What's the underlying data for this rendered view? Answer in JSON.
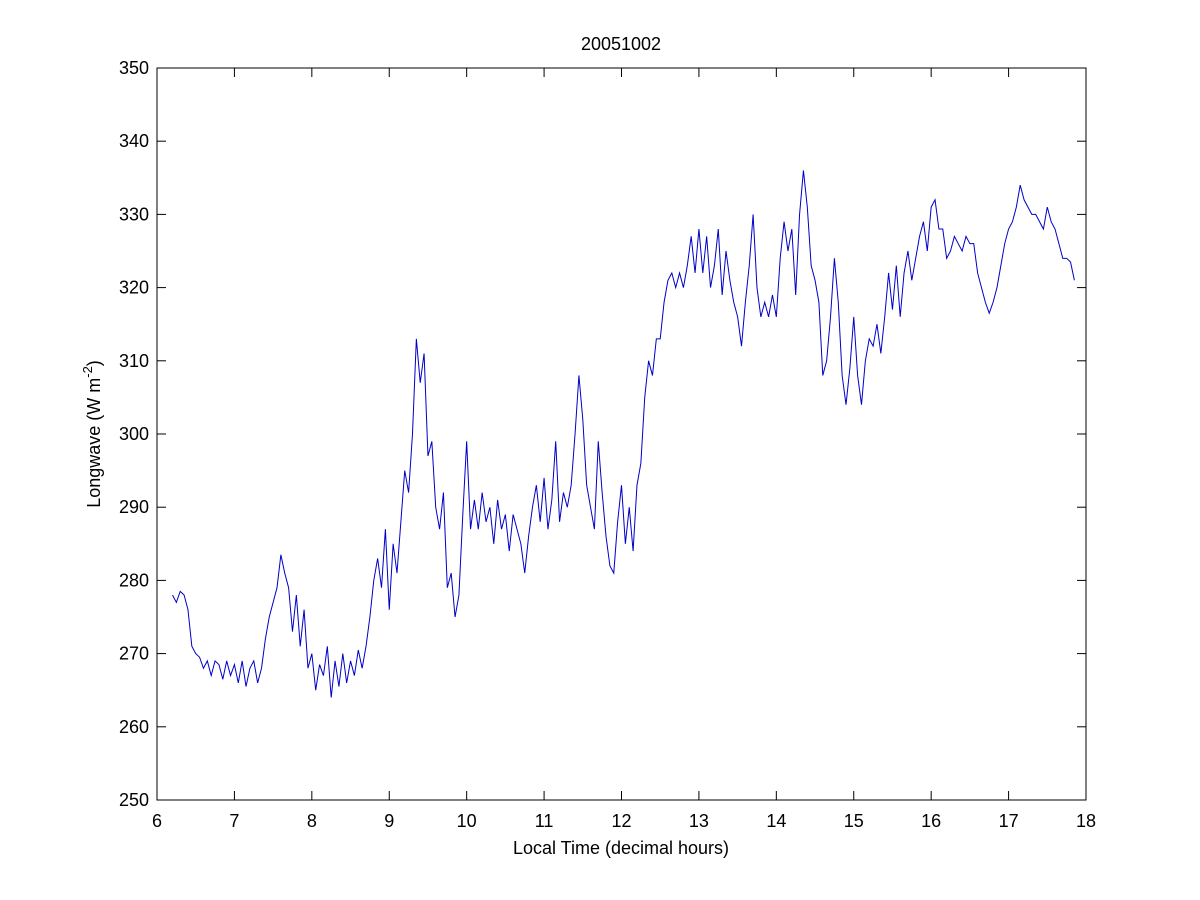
{
  "chart_data": {
    "type": "line",
    "title": "20051002",
    "xlabel": "Local Time (decimal hours)",
    "ylabel_main": "Longwave (W m",
    "ylabel_sup": "-2",
    "ylabel_end": ")",
    "xlim": [
      6,
      18
    ],
    "xticks": [
      6,
      7,
      8,
      9,
      10,
      11,
      12,
      13,
      14,
      15,
      16,
      17,
      18
    ],
    "ylim": [
      250,
      350
    ],
    "yticks": [
      250,
      260,
      270,
      280,
      290,
      300,
      310,
      320,
      330,
      340,
      350
    ],
    "grid": false,
    "x": [
      6.2,
      6.25,
      6.3,
      6.35,
      6.4,
      6.45,
      6.5,
      6.55,
      6.6,
      6.65,
      6.7,
      6.75,
      6.8,
      6.85,
      6.9,
      6.95,
      7.0,
      7.05,
      7.1,
      7.15,
      7.2,
      7.25,
      7.3,
      7.35,
      7.4,
      7.45,
      7.5,
      7.55,
      7.6,
      7.65,
      7.7,
      7.75,
      7.8,
      7.85,
      7.9,
      7.95,
      8.0,
      8.05,
      8.1,
      8.15,
      8.2,
      8.25,
      8.3,
      8.35,
      8.4,
      8.45,
      8.5,
      8.55,
      8.6,
      8.65,
      8.7,
      8.75,
      8.8,
      8.85,
      8.9,
      8.95,
      9.0,
      9.05,
      9.1,
      9.15,
      9.2,
      9.25,
      9.3,
      9.35,
      9.4,
      9.45,
      9.5,
      9.55,
      9.6,
      9.65,
      9.7,
      9.75,
      9.8,
      9.85,
      9.9,
      9.95,
      10.0,
      10.05,
      10.1,
      10.15,
      10.2,
      10.25,
      10.3,
      10.35,
      10.4,
      10.45,
      10.5,
      10.55,
      10.6,
      10.65,
      10.7,
      10.75,
      10.8,
      10.85,
      10.9,
      10.95,
      11.0,
      11.05,
      11.1,
      11.15,
      11.2,
      11.25,
      11.3,
      11.35,
      11.4,
      11.45,
      11.5,
      11.55,
      11.6,
      11.65,
      11.7,
      11.75,
      11.8,
      11.85,
      11.9,
      11.95,
      12.0,
      12.05,
      12.1,
      12.15,
      12.2,
      12.25,
      12.3,
      12.35,
      12.4,
      12.45,
      12.5,
      12.55,
      12.6,
      12.65,
      12.7,
      12.75,
      12.8,
      12.85,
      12.9,
      12.95,
      13.0,
      13.05,
      13.1,
      13.15,
      13.2,
      13.25,
      13.3,
      13.35,
      13.4,
      13.45,
      13.5,
      13.55,
      13.6,
      13.65,
      13.7,
      13.75,
      13.8,
      13.85,
      13.9,
      13.95,
      14.0,
      14.05,
      14.1,
      14.15,
      14.2,
      14.25,
      14.3,
      14.35,
      14.4,
      14.45,
      14.5,
      14.55,
      14.6,
      14.65,
      14.7,
      14.75,
      14.8,
      14.85,
      14.9,
      14.95,
      15.0,
      15.05,
      15.1,
      15.15,
      15.2,
      15.25,
      15.3,
      15.35,
      15.4,
      15.45,
      15.5,
      15.55,
      15.6,
      15.65,
      15.7,
      15.75,
      15.8,
      15.85,
      15.9,
      15.95,
      16.0,
      16.05,
      16.1,
      16.15,
      16.2,
      16.25,
      16.3,
      16.35,
      16.4,
      16.45,
      16.5,
      16.55,
      16.6,
      16.65,
      16.7,
      16.75,
      16.8,
      16.85,
      16.9,
      16.95,
      17.0,
      17.05,
      17.1,
      17.15,
      17.2,
      17.25,
      17.3,
      17.35,
      17.4,
      17.45,
      17.5,
      17.55,
      17.6,
      17.65,
      17.7,
      17.75,
      17.8,
      17.85
    ],
    "series": [
      {
        "color": "#0000c8",
        "values": [
          278,
          277,
          278.5,
          278,
          276,
          271,
          270,
          269.5,
          268,
          269,
          267,
          269,
          268.5,
          266.5,
          269,
          267,
          268.5,
          266,
          269,
          265.5,
          268,
          269,
          266,
          268,
          272,
          275,
          277,
          279,
          283.5,
          281,
          279,
          273,
          278,
          271,
          276,
          268,
          270,
          265,
          268.5,
          267,
          271,
          264,
          269,
          265.5,
          270,
          266,
          269,
          267,
          270.5,
          268,
          271,
          275,
          280,
          283,
          279,
          287,
          276,
          285,
          281,
          288,
          295,
          292,
          300,
          313,
          307,
          311,
          297,
          299,
          290,
          287,
          292,
          279,
          281,
          275,
          278,
          289,
          299,
          287,
          291,
          287,
          292,
          288,
          290,
          285,
          291,
          287,
          289,
          284,
          289,
          287,
          285,
          281,
          286,
          290,
          293,
          288,
          294,
          287,
          291,
          299,
          288,
          292,
          290,
          293,
          300,
          308,
          302,
          293,
          290,
          287,
          299,
          292,
          286,
          282,
          281,
          288,
          293,
          285,
          290,
          284,
          293,
          296,
          305,
          310,
          308,
          313,
          313,
          318,
          321,
          322,
          320,
          322,
          320,
          323,
          327,
          322,
          328,
          322,
          327,
          320,
          323,
          328,
          319,
          325,
          321,
          318,
          316,
          312,
          318,
          323,
          330,
          320,
          316,
          318,
          316,
          319,
          316,
          324,
          329,
          325,
          328,
          319,
          330,
          336,
          331,
          323,
          321,
          318,
          308,
          310,
          316,
          324,
          318,
          308,
          304,
          309,
          316,
          308,
          304,
          310,
          313,
          312,
          315,
          311,
          316,
          322,
          317,
          323,
          316,
          322,
          325,
          321,
          324,
          327,
          329,
          325,
          331,
          332,
          328,
          328,
          324,
          325,
          327,
          326,
          325,
          327,
          326,
          326,
          322,
          320,
          318,
          316.5,
          318,
          320,
          323,
          326,
          328,
          329,
          331,
          334,
          332,
          331,
          330,
          330,
          329,
          328,
          331,
          329,
          328,
          326,
          324,
          324,
          323.5,
          321
        ]
      }
    ]
  }
}
